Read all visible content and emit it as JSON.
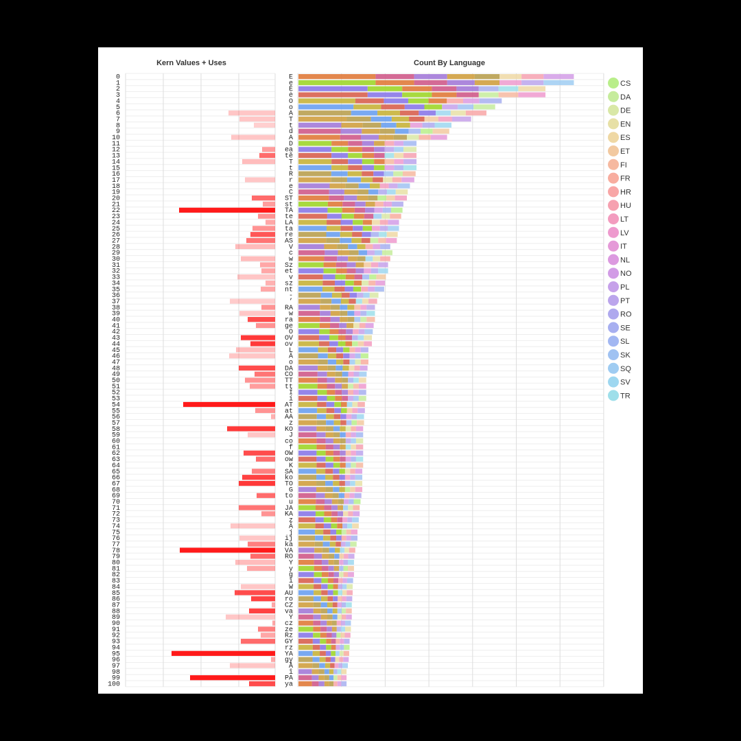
{
  "chart_data": [
    {
      "type": "bar",
      "title": "Kern Values + Uses",
      "row_labels": [
        "0",
        "1",
        "2",
        "3",
        "4",
        "5",
        "6",
        "7",
        "8",
        "9",
        "10",
        "11",
        "12",
        "13",
        "14",
        "15",
        "16",
        "17",
        "18",
        "19",
        "20",
        "21",
        "22",
        "23",
        "24",
        "25",
        "26",
        "27",
        "28",
        "29",
        "30",
        "31",
        "32",
        "33",
        "34",
        "35",
        "36",
        "37",
        "38",
        "39",
        "40",
        "41",
        "42",
        "43",
        "44",
        "45",
        "46",
        "47",
        "48",
        "49",
        "50",
        "51",
        "52",
        "53",
        "54",
        "55",
        "56",
        "57",
        "58",
        "59",
        "60",
        "61",
        "62",
        "63",
        "64",
        "65",
        "66",
        "67",
        "68",
        "69",
        "70",
        "71",
        "72",
        "73",
        "74",
        "75",
        "76",
        "77",
        "78",
        "79",
        "80",
        "81",
        "82",
        "83",
        "84",
        "85",
        "86",
        "87",
        "88",
        "89",
        "90",
        "91",
        "92",
        "93",
        "94",
        "95",
        "96",
        "97",
        "98",
        "99",
        "100"
      ],
      "values": [
        0,
        0,
        0,
        0,
        0,
        0,
        68,
        52,
        31,
        0,
        64,
        0,
        19,
        23,
        48,
        0,
        0,
        44,
        0,
        0,
        34,
        18,
        140,
        25,
        14,
        33,
        36,
        42,
        58,
        0,
        50,
        22,
        20,
        55,
        14,
        21,
        0,
        66,
        20,
        52,
        40,
        28,
        0,
        50,
        36,
        57,
        67,
        0,
        53,
        30,
        44,
        37,
        0,
        0,
        134,
        29,
        6,
        0,
        70,
        40,
        0,
        0,
        46,
        28,
        0,
        34,
        48,
        53,
        0,
        27,
        0,
        53,
        20,
        0,
        65,
        0,
        52,
        40,
        139,
        36,
        58,
        41,
        0,
        0,
        50,
        59,
        35,
        5,
        38,
        72,
        4,
        25,
        21,
        50,
        0,
        151,
        6,
        66,
        0,
        124,
        38
      ],
      "intensity": [
        0,
        0,
        0,
        0,
        0,
        0,
        0.15,
        0.15,
        0.1,
        0,
        0.15,
        0,
        0.35,
        0.6,
        0.2,
        0,
        0,
        0.15,
        0,
        0,
        0.6,
        0.35,
        1,
        0.4,
        0.3,
        0.4,
        0.7,
        0.55,
        0.2,
        0,
        0.2,
        0.3,
        0.3,
        0.15,
        0.25,
        0.3,
        0,
        0.12,
        0.4,
        0.15,
        0.75,
        0.4,
        0,
        0.85,
        0.85,
        0.2,
        0.15,
        0,
        0.75,
        0.55,
        0.4,
        0.35,
        0,
        0,
        1,
        0.4,
        0.25,
        0,
        0.85,
        0.15,
        0.3,
        0,
        0.75,
        0.6,
        0,
        0.5,
        0.8,
        0.85,
        0,
        0.6,
        0,
        0.55,
        0.4,
        0,
        0.15,
        0,
        0.15,
        0.5,
        1,
        0.6,
        0.2,
        0.3,
        0,
        0,
        0.15,
        0.75,
        0.8,
        0.3,
        0.8,
        0.15,
        0.3,
        0.5,
        0.3,
        0.6,
        0,
        1,
        0.3,
        0.15,
        0,
        1,
        0.75
      ],
      "color": "#ff1a1a"
    },
    {
      "type": "bar",
      "title": "Count By Language",
      "categories": [
        "E",
        "e",
        "Ė",
        "ė",
        "O",
        "o",
        "A",
        "T",
        "t",
        "d",
        "A",
        "D",
        "ea",
        "tě",
        "T",
        "t",
        "R",
        "r",
        "e",
        "C",
        "ST",
        "st",
        "TA",
        "te",
        "LA",
        "ta",
        "re",
        "AS",
        "V",
        "c",
        "w",
        "Sz",
        "et",
        "v",
        "sz",
        "nt",
        "-",
        "’",
        "RA",
        "w",
        "ra",
        "ge",
        "O",
        "OV",
        "ov",
        "L",
        "Ä",
        "o",
        "DA",
        "CO",
        "TT",
        "tt",
        "Í",
        "í",
        "AT",
        "at",
        "AA",
        "z",
        "KO",
        "J",
        "co",
        "f",
        "OW",
        "ow",
        "K",
        "SA",
        "ko",
        "TO",
        "G",
        "to",
        "u",
        "JA",
        "KA",
        "z",
        "Â",
        "j",
        "ij",
        "ka",
        "VA",
        "RO",
        "Y",
        "y",
        "g",
        "î",
        "W",
        "AU",
        "ro",
        "CZ",
        "va",
        "Y",
        "cz",
        "ze",
        "Rz",
        "GY",
        "rz",
        "YA",
        "gy",
        "Å",
        "î",
        "PA",
        "ya"
      ],
      "totals": [
        630,
        630,
        565,
        565,
        465,
        450,
        430,
        395,
        350,
        345,
        340,
        270,
        270,
        270,
        270,
        270,
        268,
        265,
        255,
        250,
        248,
        240,
        238,
        235,
        230,
        230,
        227,
        225,
        210,
        215,
        210,
        205,
        205,
        200,
        198,
        196,
        183,
        180,
        175,
        175,
        175,
        172,
        170,
        168,
        168,
        160,
        160,
        160,
        158,
        156,
        155,
        155,
        155,
        155,
        152,
        152,
        150,
        150,
        148,
        148,
        148,
        148,
        148,
        148,
        148,
        146,
        146,
        146,
        146,
        144,
        142,
        140,
        140,
        138,
        138,
        135,
        135,
        133,
        130,
        128,
        127,
        127,
        127,
        125,
        124,
        124,
        123,
        122,
        122,
        122,
        120,
        120,
        119,
        117,
        117,
        116,
        115,
        113,
        110,
        110,
        110
      ],
      "legend": [
        {
          "code": "CS",
          "color": "#b9ee8a"
        },
        {
          "code": "DA",
          "color": "#c6ec9c"
        },
        {
          "code": "DE",
          "color": "#d9e8a6"
        },
        {
          "code": "EN",
          "color": "#e7e0a6"
        },
        {
          "code": "ES",
          "color": "#efd8a4"
        },
        {
          "code": "ET",
          "color": "#f2c9a0"
        },
        {
          "code": "FI",
          "color": "#f6b9a0"
        },
        {
          "code": "FR",
          "color": "#f8ad9f"
        },
        {
          "code": "HR",
          "color": "#f8a6a6"
        },
        {
          "code": "HU",
          "color": "#f6a1b0"
        },
        {
          "code": "LT",
          "color": "#f39cbf"
        },
        {
          "code": "LV",
          "color": "#ee9ace"
        },
        {
          "code": "IT",
          "color": "#e59ad8"
        },
        {
          "code": "NL",
          "color": "#dc9ae0"
        },
        {
          "code": "NO",
          "color": "#d29ce6"
        },
        {
          "code": "PL",
          "color": "#c6a1ea"
        },
        {
          "code": "PT",
          "color": "#bba5ec"
        },
        {
          "code": "RO",
          "color": "#afa9ee"
        },
        {
          "code": "SE",
          "color": "#a7aff0"
        },
        {
          "code": "SL",
          "color": "#a2b7f2"
        },
        {
          "code": "SK",
          "color": "#a0c2f2"
        },
        {
          "code": "SQ",
          "color": "#9fccf2"
        },
        {
          "code": "SV",
          "color": "#9ed7f0"
        },
        {
          "code": "TR",
          "color": "#9edfea"
        }
      ]
    }
  ]
}
